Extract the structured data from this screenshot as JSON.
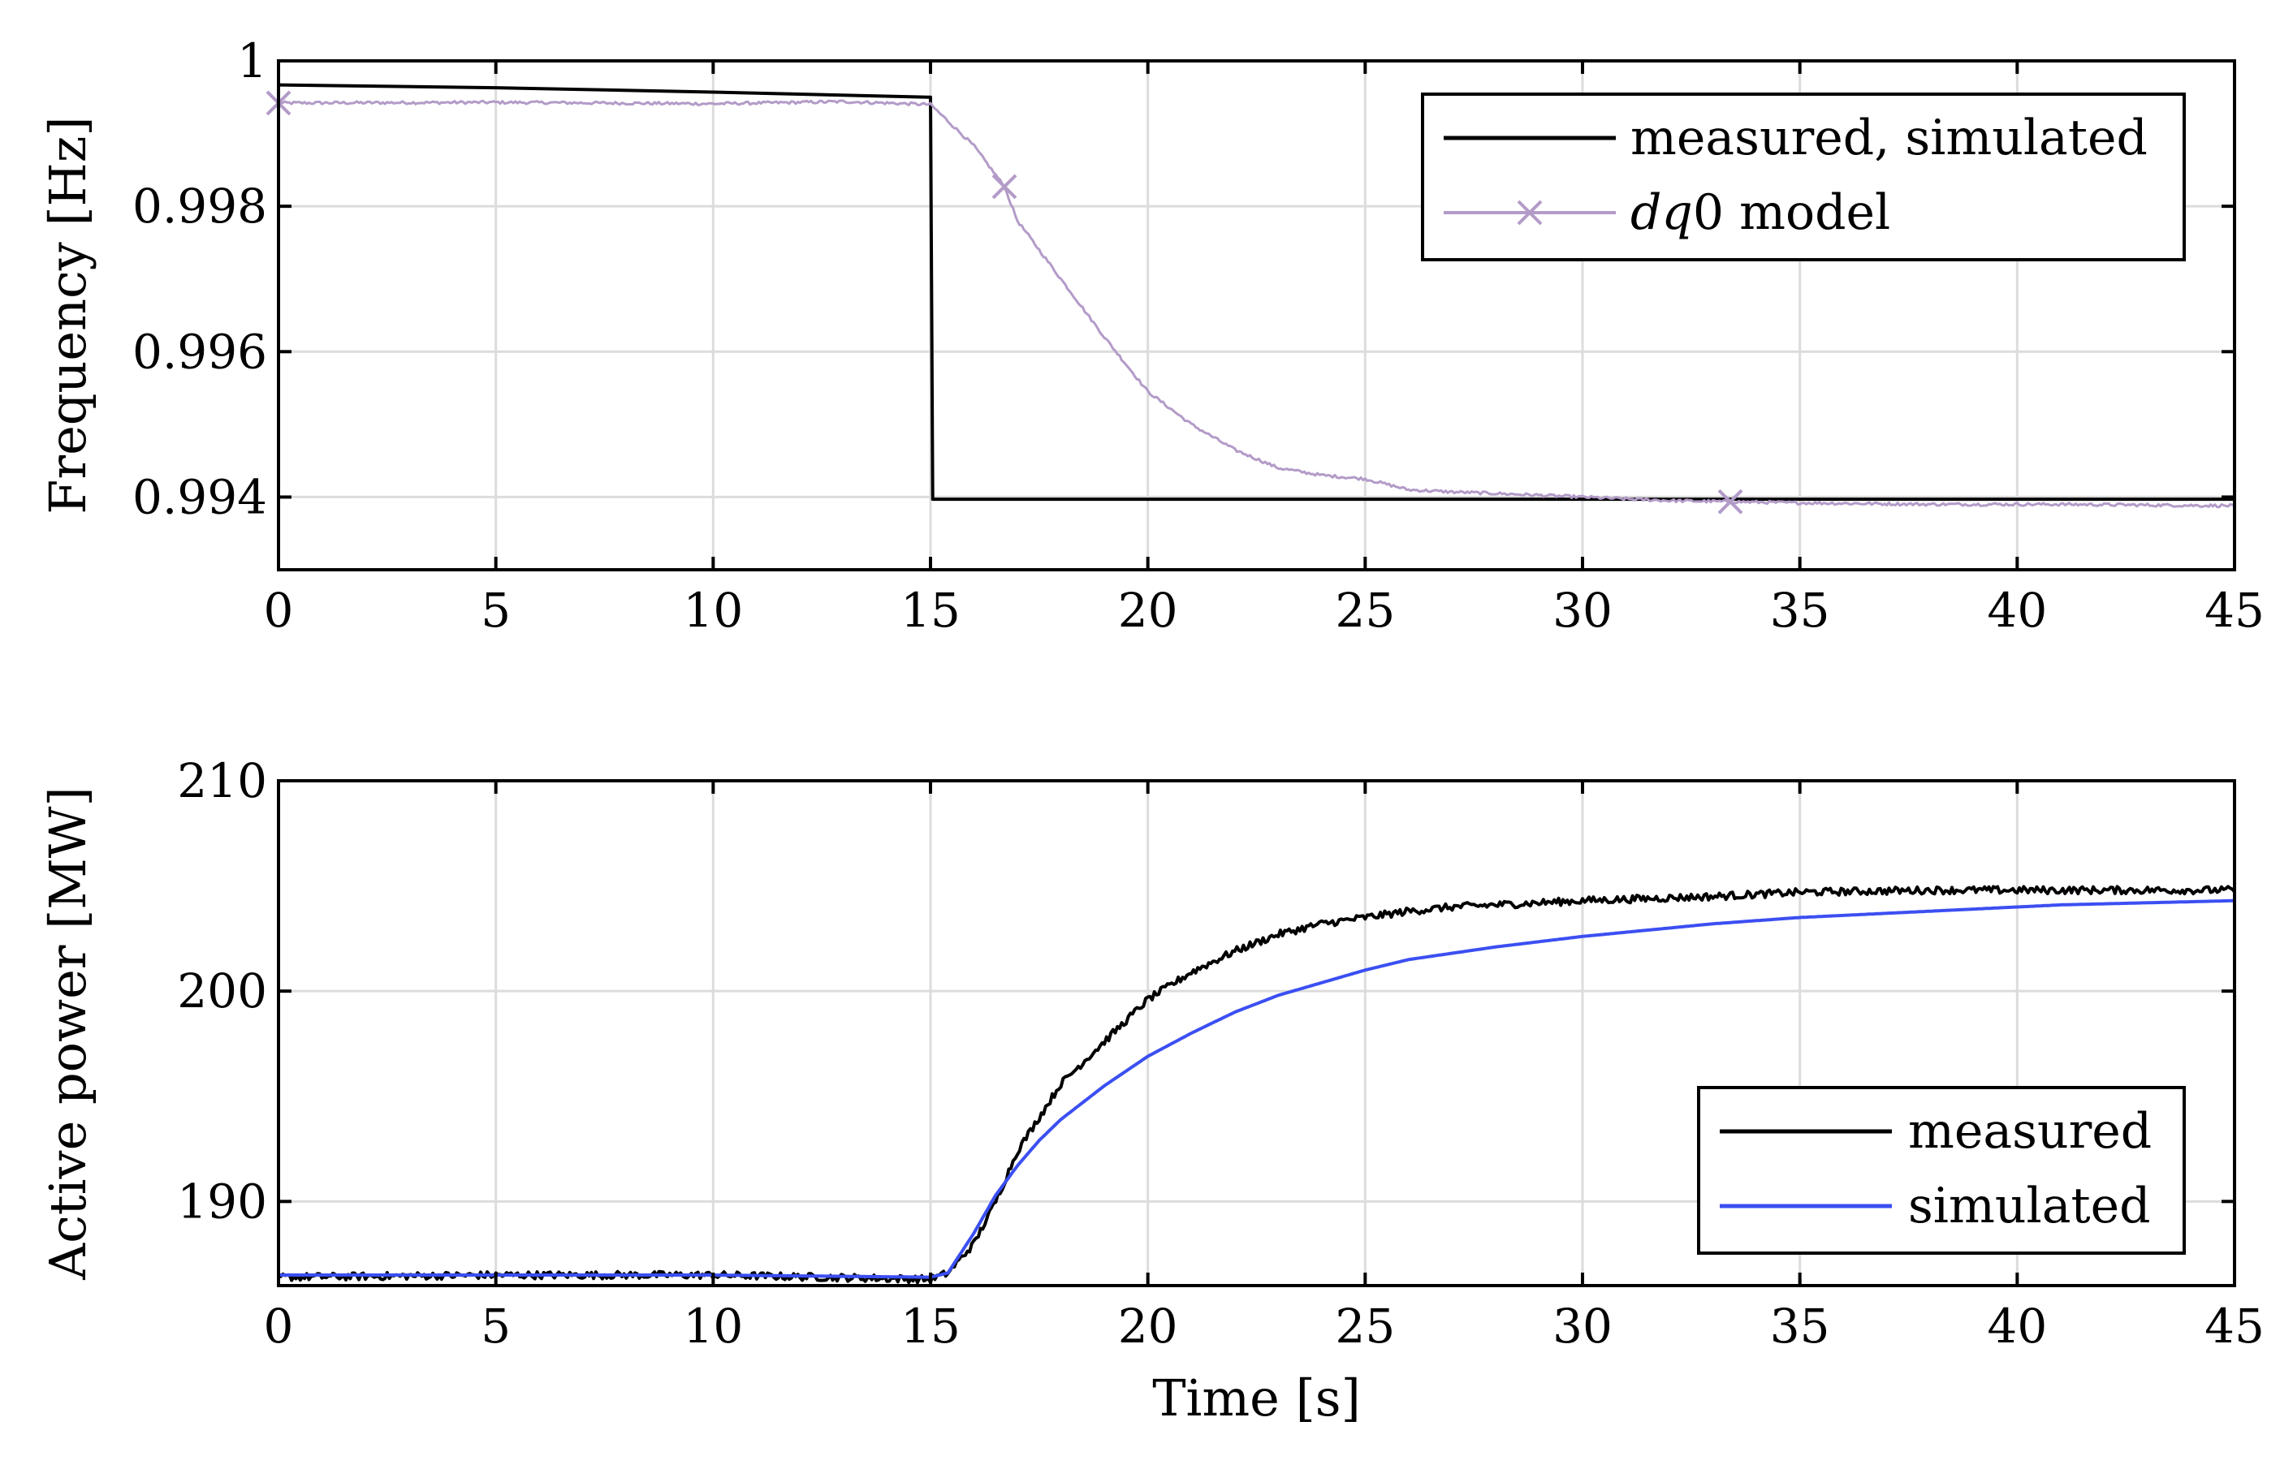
{
  "chart_data": [
    {
      "type": "line",
      "ylabel": "Frequency [Hz]",
      "xlabel": "",
      "xlim": [
        0,
        45
      ],
      "ylim": [
        0.993,
        1.0
      ],
      "xticks": [
        0,
        5,
        10,
        15,
        20,
        25,
        30,
        35,
        40,
        45
      ],
      "xtick_labels": [
        "0",
        "5",
        "10",
        "15",
        "20",
        "25",
        "30",
        "35",
        "40",
        "45"
      ],
      "yticks": [
        0.994,
        0.996,
        0.998,
        1.0
      ],
      "ytick_labels": [
        "0.994",
        "0.996",
        "0.998",
        "1"
      ],
      "grid": true,
      "legend_position": "top-right",
      "series": [
        {
          "name": "measured, simulated",
          "color": "#000000",
          "x": [
            0,
            5,
            10,
            14.95,
            15.0,
            15.05,
            45
          ],
          "values": [
            0.99967,
            0.99963,
            0.99957,
            0.9995,
            0.9995,
            0.99397,
            0.99397
          ]
        },
        {
          "name": "dq0 model",
          "legend_prefix": "dq",
          "legend_suffix": "0 model",
          "color": "#b39bc8",
          "marker": "x",
          "marker_x": [
            0,
            16.7,
            33.4
          ],
          "x": [
            0,
            5,
            10,
            13,
            15,
            16,
            16.7,
            17,
            18,
            19,
            20,
            21,
            22,
            23,
            24,
            25,
            26,
            27,
            28,
            30,
            32,
            35,
            38,
            41,
            45
          ],
          "values": [
            0.99942,
            0.99943,
            0.99941,
            0.99944,
            0.9994,
            0.99883,
            0.99827,
            0.9978,
            0.997,
            0.9962,
            0.99545,
            0.995,
            0.99465,
            0.9944,
            0.9943,
            0.99425,
            0.9941,
            0.99407,
            0.99405,
            0.994,
            0.99395,
            0.99392,
            0.9939,
            0.9939,
            0.99388
          ]
        }
      ]
    },
    {
      "type": "line",
      "ylabel": "Active power [MW]",
      "xlabel": "Time [s]",
      "xlim": [
        0,
        45
      ],
      "ylim": [
        186,
        210
      ],
      "xticks": [
        0,
        5,
        10,
        15,
        20,
        25,
        30,
        35,
        40,
        45
      ],
      "xtick_labels": [
        "0",
        "5",
        "10",
        "15",
        "20",
        "25",
        "30",
        "35",
        "40",
        "45"
      ],
      "yticks": [
        190,
        200,
        210
      ],
      "ytick_labels": [
        "190",
        "200",
        "210"
      ],
      "grid": true,
      "legend_position": "bottom-right",
      "series": [
        {
          "name": "measured",
          "color": "#000000",
          "x": [
            0,
            5,
            10,
            15,
            15.4,
            16,
            16.5,
            17,
            17.5,
            18,
            19,
            20,
            21,
            22,
            23,
            24,
            25,
            26,
            27,
            28,
            30,
            33,
            35,
            38,
            41,
            45
          ],
          "values": [
            186.4,
            186.5,
            186.5,
            186.3,
            186.6,
            188.0,
            190.0,
            192.4,
            194.0,
            195.6,
            197.6,
            199.6,
            200.9,
            201.9,
            202.7,
            203.2,
            203.5,
            203.8,
            204.0,
            204.1,
            204.3,
            204.5,
            204.7,
            204.8,
            204.8,
            204.8
          ]
        },
        {
          "name": "simulated",
          "color": "#3b4ff2",
          "x": [
            0,
            5,
            10,
            15,
            15.4,
            16,
            16.5,
            17,
            17.5,
            18,
            19,
            20,
            21,
            22,
            23,
            24,
            25,
            26,
            27,
            28,
            30,
            33,
            35,
            38,
            41,
            45
          ],
          "values": [
            186.5,
            186.5,
            186.5,
            186.4,
            186.6,
            188.5,
            190.3,
            191.7,
            192.9,
            193.9,
            195.5,
            196.9,
            198.0,
            199.0,
            199.8,
            200.4,
            201.0,
            201.5,
            201.8,
            202.1,
            202.6,
            203.2,
            203.5,
            203.8,
            204.1,
            204.3
          ]
        }
      ]
    }
  ]
}
